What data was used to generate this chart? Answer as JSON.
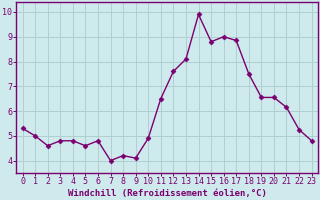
{
  "x": [
    0,
    1,
    2,
    3,
    4,
    5,
    6,
    7,
    8,
    9,
    10,
    11,
    12,
    13,
    14,
    15,
    16,
    17,
    18,
    19,
    20,
    21,
    22,
    23
  ],
  "y": [
    5.3,
    5.0,
    4.6,
    4.8,
    4.8,
    4.6,
    4.8,
    4.0,
    4.2,
    4.1,
    4.9,
    6.5,
    7.6,
    8.1,
    9.9,
    8.8,
    9.0,
    8.85,
    7.5,
    6.55,
    6.55,
    6.15,
    5.25,
    4.8
  ],
  "line_color": "#7b0070",
  "marker": "D",
  "marker_size": 2.5,
  "xlabel": "Windchill (Refroidissement éolien,°C)",
  "ylabel": "",
  "title": "",
  "ylim": [
    3.5,
    10.4
  ],
  "xlim": [
    -0.5,
    23.5
  ],
  "yticks": [
    4,
    5,
    6,
    7,
    8,
    9,
    10
  ],
  "xticks": [
    0,
    1,
    2,
    3,
    4,
    5,
    6,
    7,
    8,
    9,
    10,
    11,
    12,
    13,
    14,
    15,
    16,
    17,
    18,
    19,
    20,
    21,
    22,
    23
  ],
  "xtick_labels": [
    "0",
    "1",
    "2",
    "3",
    "4",
    "5",
    "6",
    "7",
    "8",
    "9",
    "10",
    "11",
    "12",
    "13",
    "14",
    "15",
    "16",
    "17",
    "18",
    "19",
    "20",
    "21",
    "22",
    "23"
  ],
  "bg_color": "#ceeaec",
  "grid_color": "#b0cfd1",
  "axis_color": "#7b0070",
  "tick_color": "#7b0070",
  "label_color": "#7b0070",
  "xlabel_fontsize": 6.5,
  "tick_fontsize": 6.0,
  "linewidth": 1.0
}
